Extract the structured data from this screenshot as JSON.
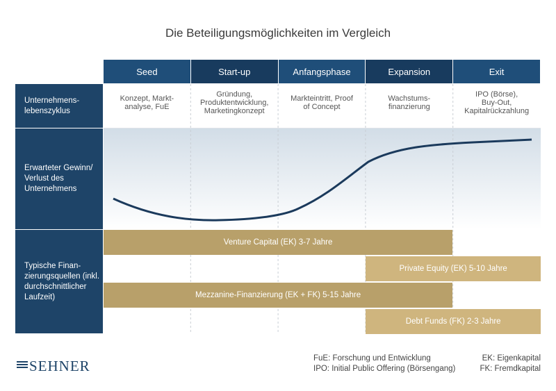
{
  "title": "Die Beteiligungsmöglichkeiten im Vergleich",
  "phases": [
    {
      "label": "Seed",
      "color": "#1f4e79"
    },
    {
      "label": "Start-up",
      "color": "#183b5e"
    },
    {
      "label": "Anfangsphase",
      "color": "#1f4e79"
    },
    {
      "label": "Expansion",
      "color": "#183b5e"
    },
    {
      "label": "Exit",
      "color": "#1f4e79"
    }
  ],
  "rows": {
    "lifecycle": "Unternehmens-\nlebenszyklus",
    "profit": "Erwarteter Gewinn/\nVerlust des\nUnternehmens",
    "financing": "Typische Finan-\nzierungsquellen (inkl.\ndurchschnittlicher\nLaufzeit)"
  },
  "lifecycle_cells": [
    "Konzept, Markt-\nanalyse, FuE",
    "Gründung,\nProduktentwicklung,\nMarketingkonzept",
    "Markteintritt, Proof\nof Concept",
    "Wachstums-\nfinanzierung",
    "IPO (Börse),\nBuy-Out,\nKapitalrückzahlung"
  ],
  "financing_bars": [
    {
      "label": "Venture Capital (EK) 3-7 Jahre",
      "start_phase": 0,
      "end_phase": 4,
      "lane": 0,
      "color": "#b8a06a"
    },
    {
      "label": "Private Equity (EK) 5-10 Jahre",
      "start_phase": 3,
      "end_phase": 5,
      "lane": 1,
      "color": "#cfb57e"
    },
    {
      "label": "Mezzanine-Finanzierung (EK + FK) 5-15 Jahre",
      "start_phase": 0,
      "end_phase": 4,
      "lane": 2,
      "color": "#b8a06a"
    },
    {
      "label": "Debt Funds (FK) 2-3 Jahre",
      "start_phase": 3,
      "end_phase": 5,
      "lane": 3,
      "color": "#cfb57e"
    }
  ],
  "footnotes_left": [
    "FuE: Forschung und Entwicklung",
    "IPO: Initial Public Offering (Börsengang)"
  ],
  "footnotes_right": [
    "EK: Eigenkapital",
    "FK: Fremdkapital"
  ],
  "logo": "SEHNER",
  "colors": {
    "navy": "#1e4468",
    "curve": "#1b3a5c",
    "gold": "#b8a06a",
    "gold_light": "#cfb57e"
  }
}
